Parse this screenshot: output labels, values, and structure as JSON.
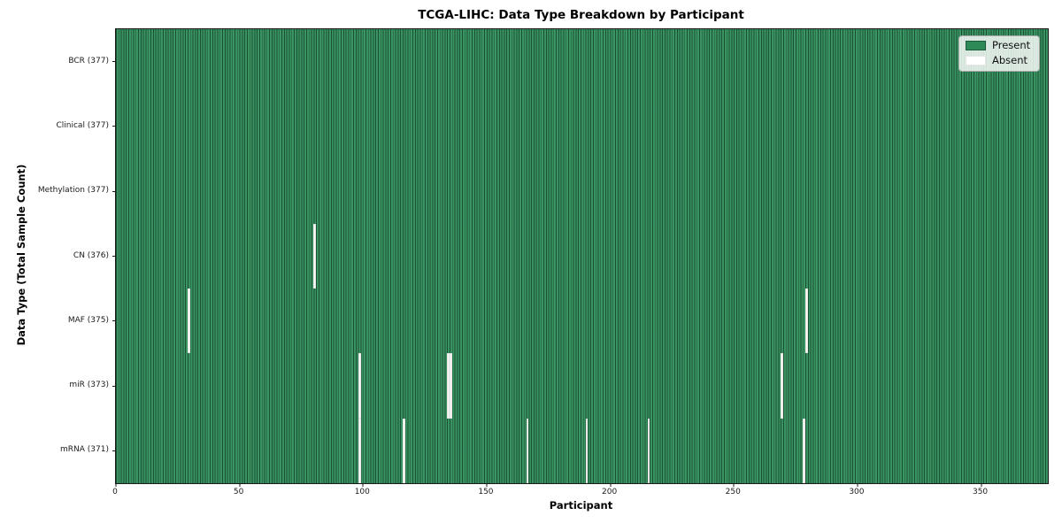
{
  "title": "TCGA-LIHC: Data Type Breakdown by Participant",
  "legend": {
    "present_label": "Present",
    "absent_label": "Absent"
  },
  "chart_data": {
    "type": "heatmap",
    "title": "TCGA-LIHC: Data Type Breakdown by Participant",
    "xlabel": "Participant",
    "ylabel": "Data Type (Total Sample Count)",
    "x_range": [
      0,
      377
    ],
    "n_participants": 377,
    "x_ticks": [
      0,
      50,
      100,
      150,
      200,
      250,
      300,
      350
    ],
    "grid": false,
    "legend_position": "upper right",
    "legend_entries": [
      "Present",
      "Absent"
    ],
    "rows": [
      {
        "name": "BCR",
        "label": "BCR (377)",
        "total": 377,
        "absent_participants": []
      },
      {
        "name": "Clinical",
        "label": "Clinical (377)",
        "total": 377,
        "absent_participants": []
      },
      {
        "name": "Methylation",
        "label": "Methylation (377)",
        "total": 377,
        "absent_participants": []
      },
      {
        "name": "CN",
        "label": "CN (376)",
        "total": 376,
        "absent_participants": [
          80
        ]
      },
      {
        "name": "MAF",
        "label": "MAF (375)",
        "total": 375,
        "absent_participants": [
          29,
          279
        ]
      },
      {
        "name": "miR",
        "label": "miR (373)",
        "total": 373,
        "absent_participants": [
          98,
          134,
          135,
          269
        ]
      },
      {
        "name": "mRNA",
        "label": "mRNA (371)",
        "total": 371,
        "absent_participants": [
          98,
          116,
          166,
          190,
          215,
          278
        ]
      }
    ],
    "colors": {
      "present": "#2e8b57",
      "absent": "#ffffff",
      "cell_edge": "#14402a",
      "spine": "#1a1a1a"
    }
  }
}
